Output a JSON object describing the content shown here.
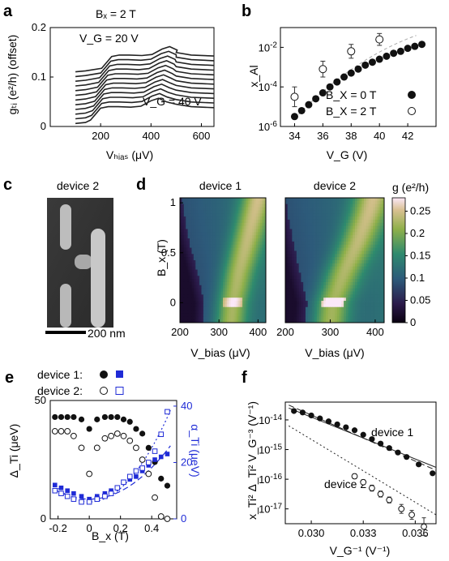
{
  "panels": {
    "a": {
      "label": "a",
      "title": "Bₓ = 2 T",
      "ylabel": "gₜᵢ (e²/h) (offset)",
      "xlabel": "Vₕᵢₐₛ (μV)",
      "annot_top": "V_G = 20 V",
      "annot_bottom": "V_G = 40 V",
      "xticks": [
        "200",
        "400",
        "600"
      ],
      "yticks": [
        "0",
        "0.1",
        "0.2"
      ]
    },
    "b": {
      "label": "b",
      "ylabel": "x_Al",
      "xlabel": "V_G (V)",
      "xticks": [
        "34",
        "36",
        "38",
        "40",
        "42"
      ],
      "yticks": [
        "10^-6",
        "10^-4",
        "10^-2"
      ],
      "legend": [
        "B_X = 0 T",
        "B_X = 2 T"
      ]
    },
    "c": {
      "label": "c",
      "title": "device 2",
      "scalebar": "200 nm"
    },
    "d": {
      "label": "d",
      "titles": [
        "device 1",
        "device 2"
      ],
      "ylabel": "B_x (T)",
      "xlabel": "V_bias (μV)",
      "xticks": [
        "200",
        "300",
        "400"
      ],
      "yticks": [
        "0",
        "0.5",
        "1"
      ],
      "colorbar_label": "g (e²/h)",
      "colorbar_ticks": [
        "0",
        "0.05",
        "0.1",
        "0.15",
        "0.2",
        "0.25"
      ]
    },
    "e": {
      "label": "e",
      "legend_device1": "device 1:",
      "legend_device2": "device 2:",
      "ylabel_left": "Δ_Ti (μeV)",
      "ylabel_right": "α_Ti (μeV)",
      "xlabel": "B_x (T)",
      "xticks": [
        "-0.2",
        "0",
        "0.2",
        "0.4"
      ],
      "yticks_left": [
        "0",
        "50"
      ],
      "yticks_right": [
        "0",
        "20",
        "40"
      ]
    },
    "f": {
      "label": "f",
      "ylabel": "x_Ti² Δ_Ti² V_G⁻³ (V⁻¹)",
      "xlabel": "V_G⁻¹ (V⁻¹)",
      "xticks": [
        "0.030",
        "0.033",
        "0.036"
      ],
      "yticks": [
        "10^-17",
        "10^-16",
        "10^-15",
        "10^-14"
      ],
      "annot_device1": "device 1",
      "annot_device2": "device 2"
    }
  },
  "colors": {
    "blue": "#1f2bd6",
    "black": "#111111"
  },
  "chart_data": [
    {
      "type": "line",
      "panel": "a",
      "title": "Bₓ = 2 T",
      "xlabel": "V_bias (μV)",
      "ylabel": "g_Ti (e²/h) (offset)",
      "xlim": [
        0,
        650
      ],
      "ylim": [
        0,
        0.2
      ],
      "n_curves": 12,
      "offset_step": 0.0095,
      "x": [
        100,
        140,
        160,
        180,
        200,
        230,
        270,
        320,
        360,
        400,
        430,
        460,
        500,
        560,
        650
      ],
      "base_values": [
        0.006,
        0.008,
        0.013,
        0.025,
        0.037,
        0.04,
        0.04,
        0.039,
        0.041,
        0.052,
        0.057,
        0.05,
        0.045,
        0.04,
        0.038
      ]
    },
    {
      "type": "scatter",
      "panel": "b",
      "xlabel": "V_G (V)",
      "ylabel": "x_Al",
      "xlim": [
        33,
        44
      ],
      "ylim_log10": [
        -6,
        -1
      ],
      "series": [
        {
          "name": "B_X = 0 T",
          "marker": "filled",
          "x": [
            34,
            34.5,
            35,
            35.5,
            36,
            36.5,
            37,
            37.5,
            38,
            38.5,
            39,
            39.5,
            40,
            40.5,
            41,
            41.5,
            42,
            42.5,
            43
          ],
          "log10_y": [
            -5.5,
            -5.2,
            -4.9,
            -4.6,
            -4.3,
            -4.0,
            -3.75,
            -3.5,
            -3.3,
            -3.1,
            -2.9,
            -2.75,
            -2.6,
            -2.45,
            -2.3,
            -2.2,
            -2.05,
            -1.95,
            -1.85
          ]
        },
        {
          "name": "B_X = 2 T",
          "marker": "open",
          "x": [
            34,
            36,
            38,
            40
          ],
          "log10_y": [
            -4.5,
            -3.1,
            -2.2,
            -1.6
          ],
          "log10_err": [
            0.5,
            0.4,
            0.35,
            0.3
          ]
        }
      ]
    },
    {
      "type": "heatmap",
      "panel": "d",
      "titles": [
        "device 1",
        "device 2"
      ],
      "xlabel": "V_bias (μV)",
      "ylabel": "B_x (T)",
      "xlim": [
        200,
        420
      ],
      "ylim": [
        -0.2,
        1.05
      ],
      "zlim": [
        0,
        0.28
      ],
      "device1_ridge": {
        "bx": [
          -0.2,
          0,
          0.3,
          0.6,
          0.9,
          1.05
        ],
        "vbias": [
          330,
          335,
          350,
          370,
          390,
          400
        ]
      },
      "device1_edge": {
        "bx": [
          -0.2,
          0,
          0.3,
          0.6,
          0.9,
          1.05
        ],
        "vbias": [
          260,
          262,
          245,
          225,
          210,
          205
        ]
      },
      "device2_ridge": {
        "bx": [
          -0.2,
          0,
          0.3,
          0.6,
          0.9,
          1.05
        ],
        "vbias": [
          300,
          305,
          330,
          360,
          385,
          395
        ]
      },
      "device2_edge": {
        "bx": [
          -0.2,
          0,
          0.3,
          0.6,
          0.9,
          1.05
        ],
        "vbias": [
          245,
          248,
          232,
          218,
          205,
          200
        ]
      }
    },
    {
      "type": "scatter",
      "panel": "e",
      "xlabel": "B_x (T)",
      "ylabel": "Δ_Ti (μeV)",
      "ylabel_right": "α_Ti (μeV)",
      "xlim": [
        -0.25,
        0.56
      ],
      "ylim": [
        0,
        50
      ],
      "ylim_right": [
        0,
        42
      ],
      "series": [
        {
          "name": "device 1",
          "marker": "filled-circle",
          "axis": "left",
          "x": [
            -0.22,
            -0.18,
            -0.14,
            -0.1,
            -0.05,
            0,
            0.05,
            0.1,
            0.14,
            0.18,
            0.22,
            0.26,
            0.3,
            0.34,
            0.38,
            0.42,
            0.46,
            0.5
          ],
          "y": [
            43,
            43,
            43,
            43,
            42,
            38,
            42,
            43,
            43,
            43,
            42,
            41,
            38,
            36,
            30,
            24,
            17,
            14
          ]
        },
        {
          "name": "device 2",
          "marker": "open-circle",
          "axis": "left",
          "x": [
            -0.22,
            -0.18,
            -0.14,
            -0.1,
            -0.05,
            0,
            0.05,
            0.1,
            0.14,
            0.18,
            0.22,
            0.26,
            0.3,
            0.34,
            0.38,
            0.42,
            0.46,
            0.5
          ],
          "y": [
            37,
            37,
            37,
            35,
            30,
            19,
            30,
            34,
            35,
            36,
            35,
            33,
            30,
            25,
            19,
            9,
            1,
            0
          ]
        },
        {
          "name": "device 1",
          "marker": "filled-square",
          "axis": "right",
          "x": [
            -0.22,
            -0.18,
            -0.14,
            -0.1,
            -0.05,
            0,
            0.05,
            0.1,
            0.14,
            0.18,
            0.22,
            0.26,
            0.3,
            0.34,
            0.38,
            0.42,
            0.46,
            0.5
          ],
          "y": [
            12,
            11,
            10,
            9,
            8,
            7,
            8,
            9,
            10,
            11,
            13,
            14,
            15,
            17,
            19,
            21,
            22,
            23
          ]
        },
        {
          "name": "device 2",
          "marker": "open-square",
          "axis": "right",
          "x": [
            -0.22,
            -0.18,
            -0.14,
            -0.1,
            -0.05,
            0,
            0.05,
            0.1,
            0.14,
            0.18,
            0.22,
            0.26,
            0.3,
            0.34,
            0.38,
            0.42,
            0.46,
            0.5
          ],
          "y": [
            10,
            9,
            8,
            7,
            6,
            6,
            7,
            8,
            9,
            11,
            13,
            15,
            17,
            18,
            20,
            24,
            30,
            38
          ]
        }
      ]
    },
    {
      "type": "scatter",
      "panel": "f",
      "xlabel": "V_G^-1 (V^-1)",
      "ylabel": "x_Ti² Δ_Ti² V_G^-3 (V^-1)",
      "xlim": [
        0.0285,
        0.0372
      ],
      "ylim_log10": [
        -17.5,
        -13.4
      ],
      "series": [
        {
          "name": "device 1",
          "marker": "filled",
          "x": [
            0.029,
            0.0295,
            0.03,
            0.0305,
            0.031,
            0.0315,
            0.032,
            0.0325,
            0.033,
            0.0335,
            0.034,
            0.0345,
            0.035,
            0.0355,
            0.0362,
            0.037
          ],
          "log10_y": [
            -13.7,
            -13.75,
            -13.85,
            -13.95,
            -14.05,
            -14.15,
            -14.25,
            -14.35,
            -14.5,
            -14.65,
            -14.8,
            -14.95,
            -15.1,
            -15.25,
            -15.5,
            -15.8
          ]
        },
        {
          "name": "device 2",
          "marker": "open",
          "x": [
            0.0325,
            0.033,
            0.0335,
            0.034,
            0.0345,
            0.0352,
            0.0358,
            0.0365
          ],
          "log10_y": [
            -15.9,
            -16.1,
            -16.3,
            -16.5,
            -16.7,
            -17.0,
            -17.2,
            -17.6
          ],
          "log10_err": [
            0.08,
            0.08,
            0.1,
            0.1,
            0.1,
            0.15,
            0.15,
            0.3
          ]
        }
      ],
      "fit_lines": [
        {
          "style": "dashed",
          "x": [
            0.0287,
            0.0372
          ],
          "log10_y": [
            -13.5,
            -15.7
          ]
        },
        {
          "style": "solid",
          "x": [
            0.0287,
            0.0372
          ],
          "log10_y": [
            -13.6,
            -15.6
          ]
        },
        {
          "style": "dotted",
          "x": [
            0.0287,
            0.0372
          ],
          "log10_y": [
            -14.2,
            -17.2
          ]
        }
      ]
    }
  ]
}
